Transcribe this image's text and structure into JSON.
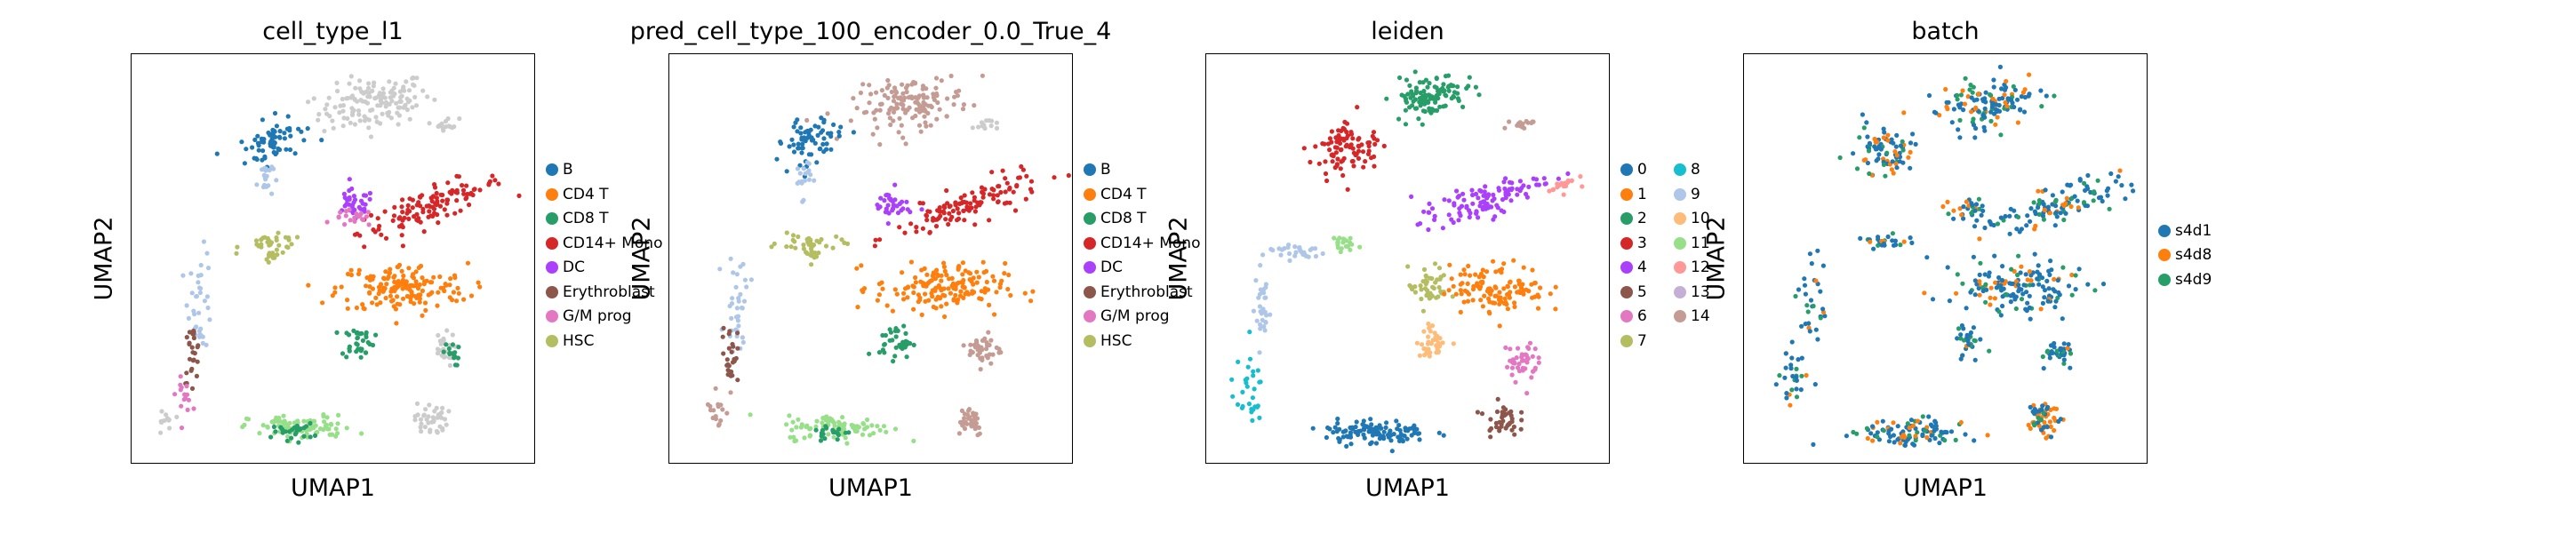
{
  "chart_data": [
    {
      "type": "scatter",
      "title": "cell_type_l1",
      "xlabel": "UMAP1",
      "ylabel": "UMAP2",
      "legend": "right",
      "categories": [
        {
          "name": "B",
          "color": "#1f77b4"
        },
        {
          "name": "CD4 T",
          "color": "#ff7f0e"
        },
        {
          "name": "CD8 T",
          "color": "#279e68"
        },
        {
          "name": "CD14+ Mono",
          "color": "#d62728"
        },
        {
          "name": "DC",
          "color": "#aa40fc"
        },
        {
          "name": "Erythroblast",
          "color": "#8c564b"
        },
        {
          "name": "G/M prog",
          "color": "#e377c2"
        },
        {
          "name": "HSC",
          "color": "#b5bd61"
        }
      ],
      "regions": [
        {
          "c": "#cccccc",
          "x": 0.6,
          "y": 0.88,
          "rx": 0.14,
          "ry": 0.06,
          "a": 10,
          "n": 140
        },
        {
          "c": "#1f77b4",
          "x": 0.35,
          "y": 0.79,
          "rx": 0.08,
          "ry": 0.05,
          "a": 25,
          "n": 70
        },
        {
          "c": "#aec7e8",
          "x": 0.33,
          "y": 0.7,
          "rx": 0.02,
          "ry": 0.05,
          "a": 0,
          "n": 20
        },
        {
          "c": "#cccccc",
          "x": 0.78,
          "y": 0.83,
          "rx": 0.03,
          "ry": 0.015,
          "a": 0,
          "n": 15
        },
        {
          "c": "#d62728",
          "x": 0.74,
          "y": 0.63,
          "rx": 0.19,
          "ry": 0.04,
          "a": 20,
          "n": 120
        },
        {
          "c": "#aa40fc",
          "x": 0.55,
          "y": 0.63,
          "rx": 0.05,
          "ry": 0.04,
          "a": 0,
          "n": 35
        },
        {
          "c": "#e377c2",
          "x": 0.55,
          "y": 0.6,
          "rx": 0.05,
          "ry": 0.02,
          "a": 0,
          "n": 20
        },
        {
          "c": "#b5bd61",
          "x": 0.35,
          "y": 0.54,
          "rx": 0.08,
          "ry": 0.02,
          "a": 0,
          "n": 30
        },
        {
          "c": "#b5bd61",
          "x": 0.35,
          "y": 0.51,
          "rx": 0.02,
          "ry": 0.02,
          "a": 0,
          "n": 12
        },
        {
          "c": "#aec7e8",
          "x": 0.17,
          "y": 0.4,
          "rx": 0.03,
          "ry": 0.12,
          "a": 0,
          "n": 35
        },
        {
          "c": "#8c564b",
          "x": 0.15,
          "y": 0.27,
          "rx": 0.02,
          "ry": 0.07,
          "a": 0,
          "n": 25
        },
        {
          "c": "#e377c2",
          "x": 0.13,
          "y": 0.17,
          "rx": 0.02,
          "ry": 0.04,
          "a": 0,
          "n": 15
        },
        {
          "c": "#cccccc",
          "x": 0.08,
          "y": 0.1,
          "rx": 0.02,
          "ry": 0.04,
          "a": 0,
          "n": 12
        },
        {
          "c": "#ff7f0e",
          "x": 0.67,
          "y": 0.43,
          "rx": 0.16,
          "ry": 0.06,
          "a": 0,
          "n": 160
        },
        {
          "c": "#279e68",
          "x": 0.56,
          "y": 0.3,
          "rx": 0.04,
          "ry": 0.04,
          "a": 0,
          "n": 35
        },
        {
          "c": "#cccccc",
          "x": 0.77,
          "y": 0.28,
          "rx": 0.03,
          "ry": 0.04,
          "a": 0,
          "n": 30
        },
        {
          "c": "#279e68",
          "x": 0.79,
          "y": 0.27,
          "rx": 0.02,
          "ry": 0.03,
          "a": 0,
          "n": 15
        },
        {
          "c": "#cccccc",
          "x": 0.74,
          "y": 0.11,
          "rx": 0.04,
          "ry": 0.04,
          "a": 0,
          "n": 40
        },
        {
          "c": "#98df8a",
          "x": 0.42,
          "y": 0.09,
          "rx": 0.13,
          "ry": 0.03,
          "a": 0,
          "n": 90
        },
        {
          "c": "#279e68",
          "x": 0.4,
          "y": 0.08,
          "rx": 0.05,
          "ry": 0.02,
          "a": 0,
          "n": 25
        }
      ]
    },
    {
      "type": "scatter",
      "title": "pred_cell_type_100_encoder_0.0_True_4",
      "xlabel": "UMAP1",
      "ylabel": "UMAP2",
      "legend": "right",
      "categories": [
        {
          "name": "B",
          "color": "#1f77b4"
        },
        {
          "name": "CD4 T",
          "color": "#ff7f0e"
        },
        {
          "name": "CD8 T",
          "color": "#279e68"
        },
        {
          "name": "CD14+ Mono",
          "color": "#d62728"
        },
        {
          "name": "DC",
          "color": "#aa40fc"
        },
        {
          "name": "Erythroblast",
          "color": "#8c564b"
        },
        {
          "name": "G/M prog",
          "color": "#e377c2"
        },
        {
          "name": "HSC",
          "color": "#b5bd61"
        }
      ],
      "regions": [
        {
          "c": "#c49c94",
          "x": 0.6,
          "y": 0.88,
          "rx": 0.14,
          "ry": 0.06,
          "a": 10,
          "n": 140
        },
        {
          "c": "#1f77b4",
          "x": 0.35,
          "y": 0.79,
          "rx": 0.08,
          "ry": 0.05,
          "a": 25,
          "n": 70
        },
        {
          "c": "#aec7e8",
          "x": 0.33,
          "y": 0.7,
          "rx": 0.02,
          "ry": 0.05,
          "a": 0,
          "n": 20
        },
        {
          "c": "#cccccc",
          "x": 0.78,
          "y": 0.83,
          "rx": 0.03,
          "ry": 0.015,
          "a": 0,
          "n": 15
        },
        {
          "c": "#d62728",
          "x": 0.74,
          "y": 0.63,
          "rx": 0.19,
          "ry": 0.04,
          "a": 20,
          "n": 120
        },
        {
          "c": "#aa40fc",
          "x": 0.55,
          "y": 0.63,
          "rx": 0.05,
          "ry": 0.04,
          "a": 0,
          "n": 35
        },
        {
          "c": "#b5bd61",
          "x": 0.35,
          "y": 0.54,
          "rx": 0.08,
          "ry": 0.02,
          "a": 0,
          "n": 30
        },
        {
          "c": "#b5bd61",
          "x": 0.35,
          "y": 0.51,
          "rx": 0.02,
          "ry": 0.02,
          "a": 0,
          "n": 12
        },
        {
          "c": "#aec7e8",
          "x": 0.17,
          "y": 0.4,
          "rx": 0.03,
          "ry": 0.12,
          "a": 0,
          "n": 35
        },
        {
          "c": "#8c564b",
          "x": 0.15,
          "y": 0.27,
          "rx": 0.02,
          "ry": 0.07,
          "a": 0,
          "n": 25
        },
        {
          "c": "#c49c94",
          "x": 0.12,
          "y": 0.14,
          "rx": 0.03,
          "ry": 0.06,
          "a": 0,
          "n": 18
        },
        {
          "c": "#ff7f0e",
          "x": 0.67,
          "y": 0.43,
          "rx": 0.16,
          "ry": 0.06,
          "a": 0,
          "n": 160
        },
        {
          "c": "#279e68",
          "x": 0.56,
          "y": 0.3,
          "rx": 0.04,
          "ry": 0.04,
          "a": 0,
          "n": 35
        },
        {
          "c": "#c49c94",
          "x": 0.78,
          "y": 0.28,
          "rx": 0.04,
          "ry": 0.04,
          "a": 0,
          "n": 40
        },
        {
          "c": "#c49c94",
          "x": 0.74,
          "y": 0.11,
          "rx": 0.04,
          "ry": 0.04,
          "a": 0,
          "n": 40
        },
        {
          "c": "#98df8a",
          "x": 0.42,
          "y": 0.09,
          "rx": 0.13,
          "ry": 0.03,
          "a": 0,
          "n": 90
        },
        {
          "c": "#279e68",
          "x": 0.4,
          "y": 0.08,
          "rx": 0.05,
          "ry": 0.02,
          "a": 0,
          "n": 20
        }
      ]
    },
    {
      "type": "scatter",
      "title": "leiden",
      "xlabel": "UMAP1",
      "ylabel": "UMAP2",
      "legend": "right",
      "legend_columns": 2,
      "categories": [
        {
          "name": "0",
          "color": "#1f77b4"
        },
        {
          "name": "1",
          "color": "#ff7f0e"
        },
        {
          "name": "2",
          "color": "#279e68"
        },
        {
          "name": "3",
          "color": "#d62728"
        },
        {
          "name": "4",
          "color": "#aa40fc"
        },
        {
          "name": "5",
          "color": "#8c564b"
        },
        {
          "name": "6",
          "color": "#e377c2"
        },
        {
          "name": "7",
          "color": "#b5bd61"
        },
        {
          "name": "8",
          "color": "#17becf"
        },
        {
          "name": "9",
          "color": "#aec7e8"
        },
        {
          "name": "10",
          "color": "#ffbb78"
        },
        {
          "name": "11",
          "color": "#98df8a"
        },
        {
          "name": "12",
          "color": "#ff9896"
        },
        {
          "name": "13",
          "color": "#c5b0d5"
        },
        {
          "name": "14",
          "color": "#c49c94"
        }
      ],
      "regions": [
        {
          "c": "#279e68",
          "x": 0.55,
          "y": 0.9,
          "rx": 0.09,
          "ry": 0.05,
          "a": 10,
          "n": 110
        },
        {
          "c": "#c49c94",
          "x": 0.78,
          "y": 0.83,
          "rx": 0.03,
          "ry": 0.015,
          "a": 0,
          "n": 15
        },
        {
          "c": "#d62728",
          "x": 0.35,
          "y": 0.77,
          "rx": 0.08,
          "ry": 0.06,
          "a": 25,
          "n": 90
        },
        {
          "c": "#aa40fc",
          "x": 0.68,
          "y": 0.64,
          "rx": 0.16,
          "ry": 0.04,
          "a": 20,
          "n": 110
        },
        {
          "c": "#ff9896",
          "x": 0.88,
          "y": 0.68,
          "rx": 0.04,
          "ry": 0.015,
          "a": 20,
          "n": 20
        },
        {
          "c": "#98df8a",
          "x": 0.33,
          "y": 0.54,
          "rx": 0.03,
          "ry": 0.02,
          "a": 0,
          "n": 20
        },
        {
          "c": "#aec7e8",
          "x": 0.22,
          "y": 0.52,
          "rx": 0.08,
          "ry": 0.02,
          "a": 0,
          "n": 30
        },
        {
          "c": "#aec7e8",
          "x": 0.14,
          "y": 0.38,
          "rx": 0.02,
          "ry": 0.1,
          "a": 0,
          "n": 30
        },
        {
          "c": "#17becf",
          "x": 0.1,
          "y": 0.18,
          "rx": 0.04,
          "ry": 0.08,
          "a": 0,
          "n": 30
        },
        {
          "c": "#b5bd61",
          "x": 0.55,
          "y": 0.43,
          "rx": 0.05,
          "ry": 0.05,
          "a": 0,
          "n": 45
        },
        {
          "c": "#ff7f0e",
          "x": 0.72,
          "y": 0.43,
          "rx": 0.12,
          "ry": 0.06,
          "a": 0,
          "n": 120
        },
        {
          "c": "#ffbb78",
          "x": 0.56,
          "y": 0.3,
          "rx": 0.04,
          "ry": 0.04,
          "a": 0,
          "n": 35
        },
        {
          "c": "#e377c2",
          "x": 0.78,
          "y": 0.25,
          "rx": 0.04,
          "ry": 0.05,
          "a": 0,
          "n": 45
        },
        {
          "c": "#8c564b",
          "x": 0.73,
          "y": 0.11,
          "rx": 0.04,
          "ry": 0.04,
          "a": 0,
          "n": 40
        },
        {
          "c": "#1f77b4",
          "x": 0.42,
          "y": 0.08,
          "rx": 0.13,
          "ry": 0.03,
          "a": 0,
          "n": 110
        }
      ]
    },
    {
      "type": "scatter",
      "title": "batch",
      "xlabel": "UMAP1",
      "ylabel": "UMAP2",
      "legend": "right",
      "categories": [
        {
          "name": "s4d1",
          "color": "#1f77b4"
        },
        {
          "name": "s4d8",
          "color": "#ff7f0e"
        },
        {
          "name": "s4d9",
          "color": "#279e68"
        }
      ],
      "regions": [
        {
          "c": "mix",
          "x": 0.6,
          "y": 0.88,
          "rx": 0.12,
          "ry": 0.06,
          "a": 10,
          "n": 130
        },
        {
          "c": "mix",
          "x": 0.35,
          "y": 0.77,
          "rx": 0.08,
          "ry": 0.06,
          "a": 25,
          "n": 80
        },
        {
          "c": "mix",
          "x": 0.76,
          "y": 0.63,
          "rx": 0.18,
          "ry": 0.04,
          "a": 20,
          "n": 120
        },
        {
          "c": "mix",
          "x": 0.55,
          "y": 0.62,
          "rx": 0.05,
          "ry": 0.03,
          "a": 0,
          "n": 30
        },
        {
          "c": "mix",
          "x": 0.35,
          "y": 0.54,
          "rx": 0.08,
          "ry": 0.02,
          "a": 0,
          "n": 25
        },
        {
          "c": "mix",
          "x": 0.17,
          "y": 0.4,
          "rx": 0.03,
          "ry": 0.12,
          "a": 0,
          "n": 30
        },
        {
          "c": "mix",
          "x": 0.12,
          "y": 0.2,
          "rx": 0.04,
          "ry": 0.1,
          "a": 0,
          "n": 30
        },
        {
          "c": "mix",
          "x": 0.67,
          "y": 0.43,
          "rx": 0.16,
          "ry": 0.06,
          "a": 0,
          "n": 150
        },
        {
          "c": "mix",
          "x": 0.56,
          "y": 0.3,
          "rx": 0.04,
          "ry": 0.04,
          "a": 0,
          "n": 30
        },
        {
          "c": "mix",
          "x": 0.78,
          "y": 0.27,
          "rx": 0.04,
          "ry": 0.04,
          "a": 0,
          "n": 35
        },
        {
          "c": "#ff7f0e",
          "x": 0.74,
          "y": 0.11,
          "rx": 0.04,
          "ry": 0.04,
          "a": 0,
          "n": 30
        },
        {
          "c": "mix",
          "x": 0.74,
          "y": 0.11,
          "rx": 0.04,
          "ry": 0.04,
          "a": 0,
          "n": 25
        },
        {
          "c": "mix",
          "x": 0.42,
          "y": 0.08,
          "rx": 0.13,
          "ry": 0.03,
          "a": 0,
          "n": 100
        }
      ]
    }
  ]
}
